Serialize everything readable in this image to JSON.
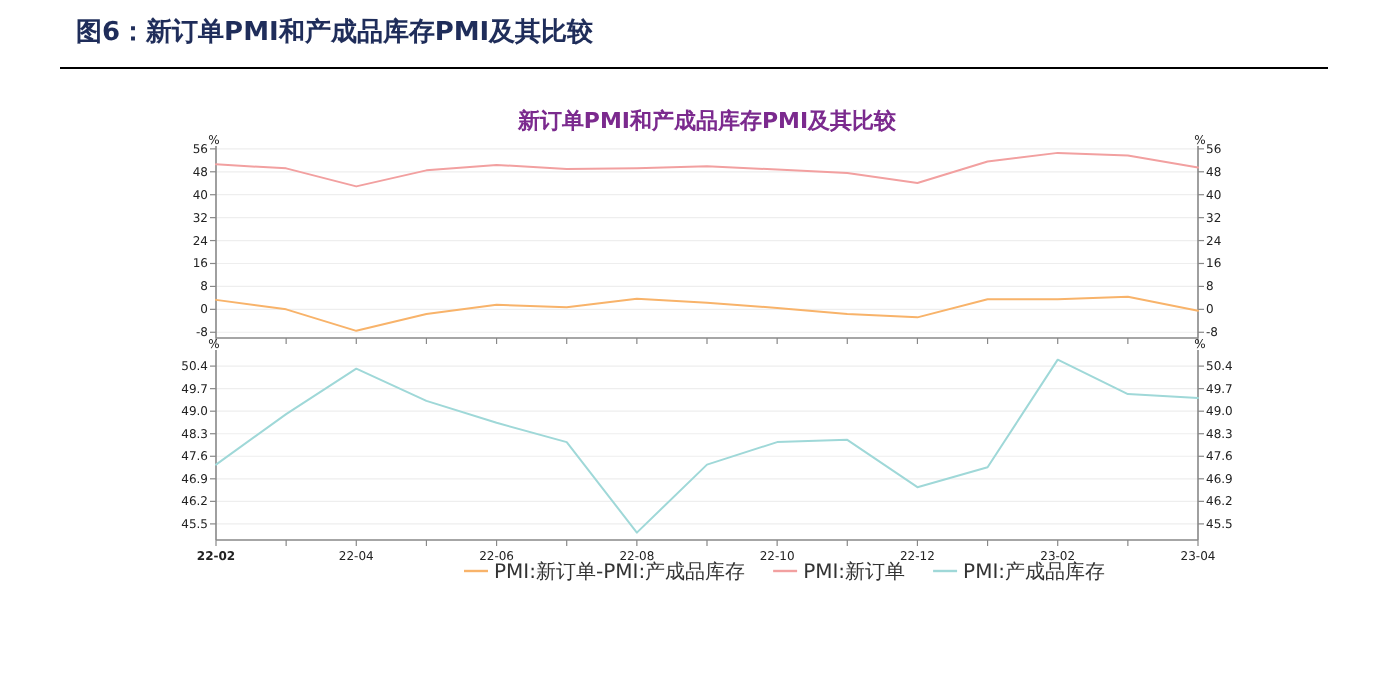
{
  "chart_data": [
    {
      "type": "line",
      "title": "图6：新订单PMI和产成品库存PMI及其比较",
      "subtitle": "新订单PMI和产成品库存PMI及其比较",
      "ylabel": "%",
      "y2label": "%",
      "categories": [
        null,
        null,
        null,
        null,
        null,
        null,
        null,
        null,
        null,
        null,
        null,
        null,
        null,
        null,
        null
      ],
      "series": [
        {
          "name": "PMI:新订单-PMI:产成品库存",
          "color": "#f8b36a",
          "values": [
            3.3,
            0.0,
            -7.5,
            -1.6,
            1.6,
            0.7,
            3.7,
            2.3,
            0.5,
            -1.6,
            -2.8,
            3.5,
            3.5,
            4.4,
            -0.5
          ]
        },
        {
          "name": "PMI:新订单",
          "color": "#f2a0a0",
          "values": [
            50.6,
            49.2,
            42.9,
            48.5,
            50.4,
            49.0,
            49.2,
            49.9,
            48.8,
            47.6,
            44.1,
            51.6,
            54.6,
            53.7,
            49.5
          ]
        }
      ],
      "ylim": [
        -10,
        57
      ],
      "yticks": [
        -8,
        0,
        8,
        16,
        24,
        32,
        40,
        48,
        56
      ],
      "y2lim": [
        -10,
        57
      ],
      "y2ticks": [
        -8,
        0,
        8,
        16,
        24,
        32,
        40,
        48,
        56
      ],
      "grid": "y",
      "legend": "bottom",
      "tick_labels": "y"
    },
    {
      "type": "line",
      "ylabel": "%",
      "y2label": "%",
      "categories": [
        "22-02",
        null,
        "22-04",
        null,
        "22-06",
        null,
        "22-08",
        null,
        "22-10",
        null,
        "22-12",
        null,
        "23-02",
        null,
        "23-04"
      ],
      "series": [
        {
          "name": "PMI:产成品库存",
          "color": "#9fd8d8",
          "values": [
            47.34,
            48.91,
            50.32,
            49.32,
            48.64,
            48.04,
            45.23,
            47.34,
            48.04,
            48.11,
            46.64,
            47.26,
            50.6,
            49.53,
            49.41
          ]
        }
      ],
      "ylim": [
        45.0,
        50.9
      ],
      "yticks": [
        {
          "value": 45.5,
          "label": "45.5"
        },
        {
          "value": 46.2,
          "label": "46.2"
        },
        {
          "value": 46.9,
          "label": "46.9"
        },
        {
          "value": 47.6,
          "label": "47.6"
        },
        {
          "value": 48.3,
          "label": "48.3"
        },
        {
          "value": 49.0,
          "label": "49.0"
        },
        {
          "value": 49.7,
          "label": "49.7"
        },
        {
          "value": 50.4,
          "label": "50.4"
        }
      ],
      "y2lim": [
        45.0,
        50.9
      ],
      "y2ticks": [
        {
          "value": 45.5,
          "label": "45.5"
        },
        {
          "value": 46.2,
          "label": "46.2"
        },
        {
          "value": 46.9,
          "label": "46.9"
        },
        {
          "value": 47.6,
          "label": "47.6"
        },
        {
          "value": 48.3,
          "label": "48.3"
        },
        {
          "value": 49.0,
          "label": "49.0"
        },
        {
          "value": 49.7,
          "label": "49.7"
        },
        {
          "value": 50.4,
          "label": "50.4"
        }
      ],
      "grid": "y",
      "legend": "bottom"
    }
  ]
}
